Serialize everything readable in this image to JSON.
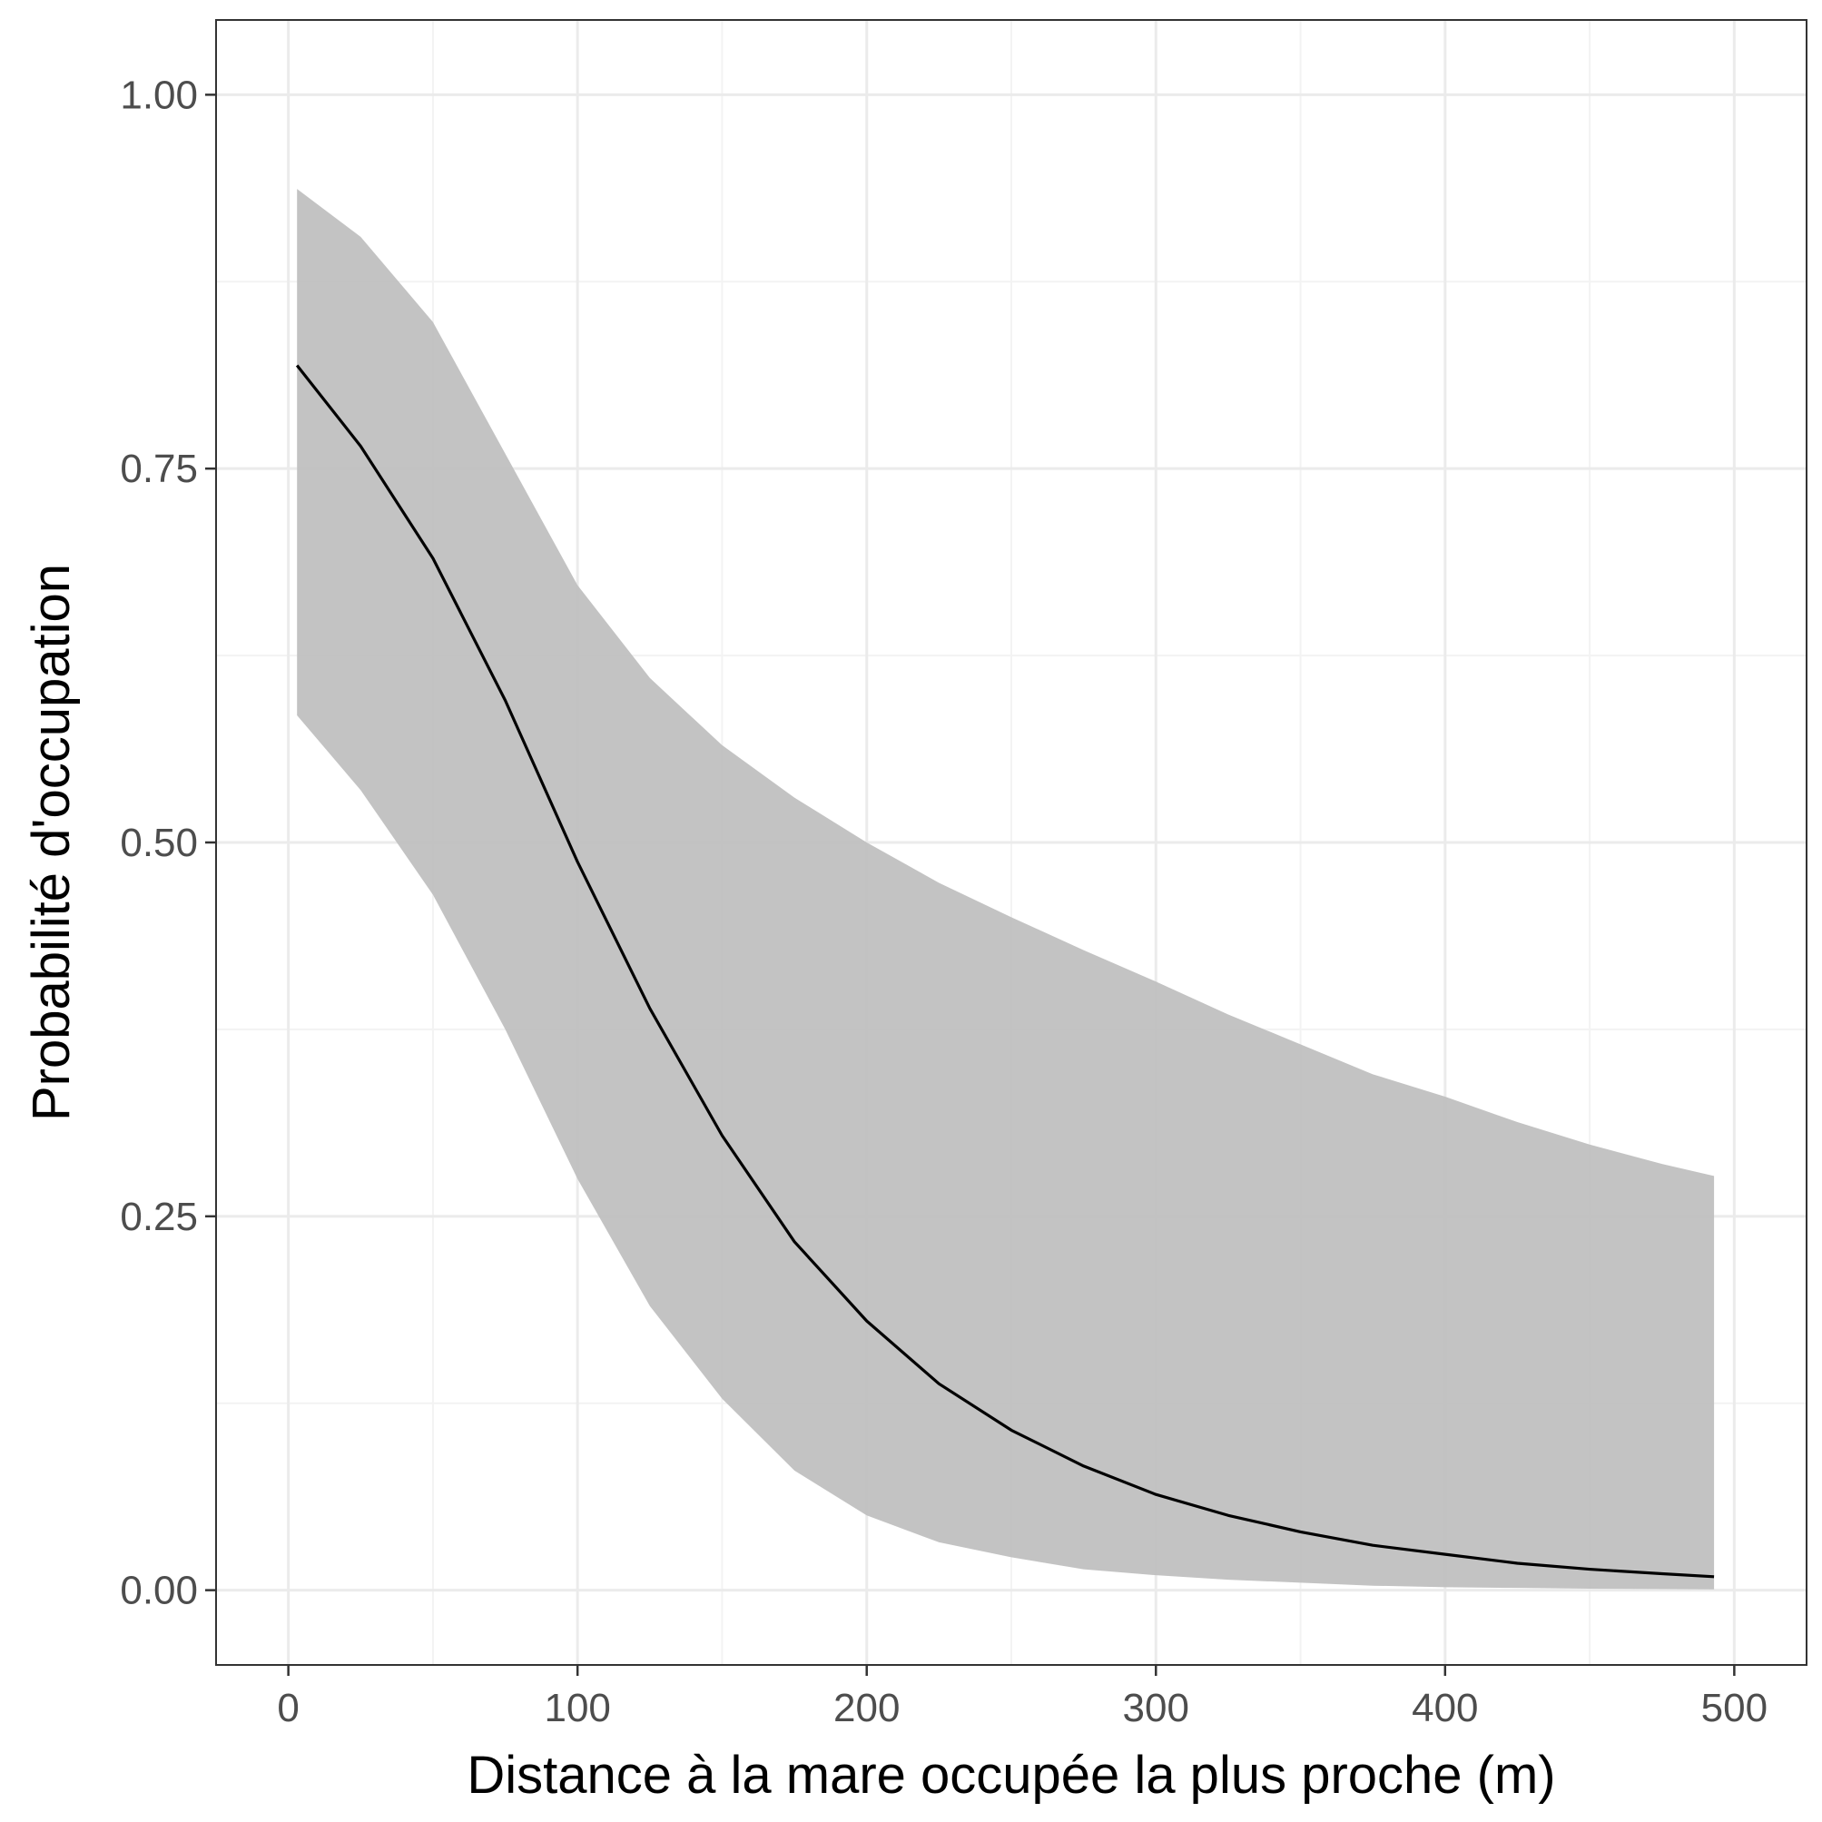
{
  "chart_data": {
    "type": "line",
    "title": "",
    "xlabel": "Distance à la mare occupée la plus proche (m)",
    "ylabel": "Probabilité d'occupation",
    "xlim": [
      -25,
      525
    ],
    "ylim": [
      -0.05,
      1.05
    ],
    "x_ticks": [
      0,
      100,
      200,
      300,
      400,
      500
    ],
    "x_tick_labels": [
      "0",
      "100",
      "200",
      "300",
      "400",
      "500"
    ],
    "y_ticks": [
      0.0,
      0.25,
      0.5,
      0.75,
      1.0
    ],
    "y_tick_labels": [
      "0.00",
      "0.25",
      "0.50",
      "0.75",
      "1.00"
    ],
    "x_minor_ticks": [
      50,
      150,
      250,
      350,
      450
    ],
    "y_minor_ticks": [
      0.125,
      0.375,
      0.625,
      0.875
    ],
    "grid": true,
    "legend": "none",
    "series": [
      {
        "x": [
          3,
          25,
          50,
          75,
          100,
          125,
          150,
          175,
          200,
          225,
          250,
          275,
          300,
          325,
          350,
          375,
          400,
          425,
          450,
          475,
          493
        ],
        "y": [
          0.819,
          0.765,
          0.69,
          0.595,
          0.487,
          0.389,
          0.304,
          0.233,
          0.18,
          0.138,
          0.107,
          0.083,
          0.064,
          0.05,
          0.039,
          0.03,
          0.024,
          0.018,
          0.014,
          0.011,
          0.009
        ],
        "lower": [
          0.585,
          0.535,
          0.465,
          0.375,
          0.275,
          0.19,
          0.128,
          0.08,
          0.05,
          0.032,
          0.022,
          0.014,
          0.01,
          0.007,
          0.005,
          0.003,
          0.002,
          0.0015,
          0.001,
          0.0008,
          0.0005
        ],
        "upper": [
          0.937,
          0.905,
          0.848,
          0.76,
          0.672,
          0.61,
          0.565,
          0.53,
          0.5,
          0.473,
          0.45,
          0.428,
          0.407,
          0.385,
          0.365,
          0.345,
          0.33,
          0.313,
          0.298,
          0.285,
          0.277
        ]
      }
    ],
    "colors": {
      "line": "#000000",
      "ribbon": "#bebebe",
      "grid_major": "#ebebeb",
      "grid_minor": "#f3f3f3",
      "panel_border": "#333333",
      "tick_text": "#4d4d4d"
    }
  }
}
